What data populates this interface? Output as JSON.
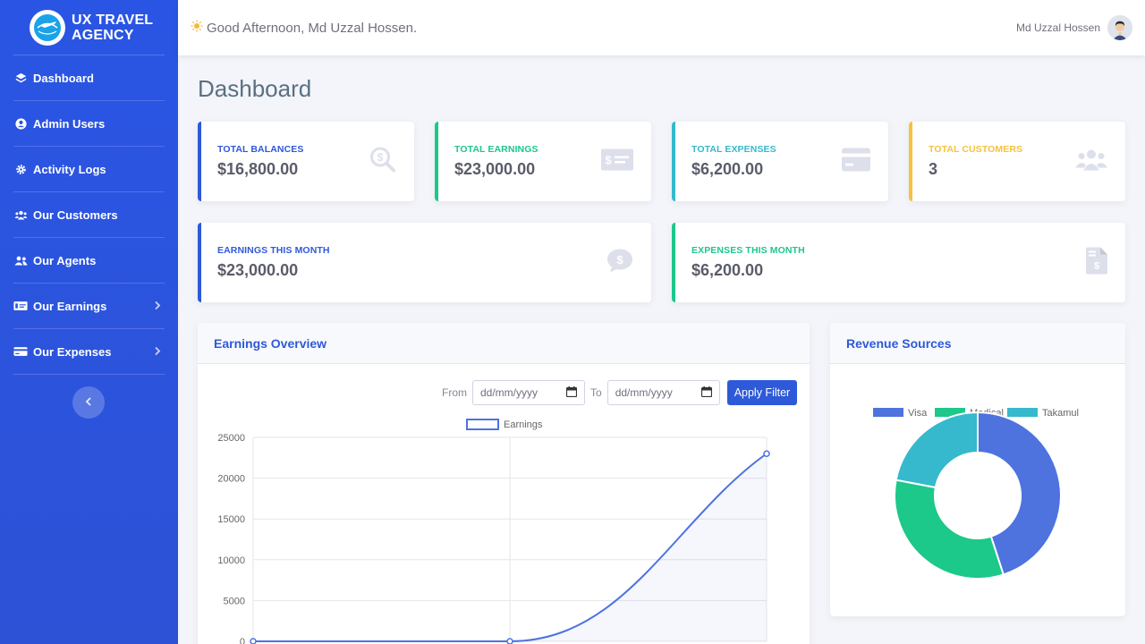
{
  "brand": {
    "name": "UX Travel Agency"
  },
  "sidebar": {
    "items": [
      {
        "label": "Dashboard",
        "icon": "layers-icon"
      },
      {
        "label": "Admin Users",
        "icon": "user-circle-icon"
      },
      {
        "label": "Activity Logs",
        "icon": "gear-icon"
      },
      {
        "label": "Our Customers",
        "icon": "users-icon"
      },
      {
        "label": "Our Agents",
        "icon": "user-friends-icon"
      },
      {
        "label": "Our Earnings",
        "icon": "money-card-icon",
        "expandable": true
      },
      {
        "label": "Our Expenses",
        "icon": "credit-card-icon",
        "expandable": true
      }
    ]
  },
  "topbar": {
    "greeting": "Good Afternoon, Md Uzzal Hossen.",
    "user_name": "Md Uzzal Hossen"
  },
  "page": {
    "title": "Dashboard"
  },
  "stats": [
    {
      "label": "Total Balances",
      "value": "$16,800.00",
      "color": "#2e59d9",
      "icon": "search-dollar-icon"
    },
    {
      "label": "Total Earnings",
      "value": "$23,000.00",
      "color": "#1cc88a",
      "icon": "money-bill-icon"
    },
    {
      "label": "Total Expenses",
      "value": "$6,200.00",
      "color": "#36b9cc",
      "icon": "credit-card-icon"
    },
    {
      "label": "Total Customers",
      "value": "3",
      "color": "#f6c23e",
      "icon": "users-icon"
    },
    {
      "label": "Earnings This Month",
      "value": "$23,000.00",
      "color": "#2e59d9",
      "icon": "comment-dollar-icon"
    },
    {
      "label": "Expenses This Month",
      "value": "$6,200.00",
      "color": "#1cc88a",
      "icon": "file-invoice-dollar-icon"
    }
  ],
  "earnings_panel": {
    "title": "Earnings Overview",
    "from_label": "From",
    "to_label": "To",
    "from_placeholder": "dd/mm/yyyy",
    "to_placeholder": "dd/mm/yyyy",
    "apply_label": "Apply Filter"
  },
  "revenue_panel": {
    "title": "Revenue Sources"
  },
  "chart_data": [
    {
      "type": "area",
      "legend": [
        "Earnings"
      ],
      "x": [
        0,
        1,
        2
      ],
      "series": [
        {
          "name": "Earnings",
          "values": [
            0,
            0,
            23000
          ],
          "color": "#4e73df"
        }
      ],
      "yticks": [
        0,
        5000,
        10000,
        15000,
        20000,
        25000
      ],
      "ylim": [
        0,
        25000
      ]
    },
    {
      "type": "pie",
      "categories": [
        "Visa",
        "Medical",
        "Takamul"
      ],
      "values": [
        45,
        33,
        22
      ],
      "colors": [
        "#4e73df",
        "#1cc88a",
        "#36b9cc"
      ],
      "legend_position": "top"
    }
  ]
}
